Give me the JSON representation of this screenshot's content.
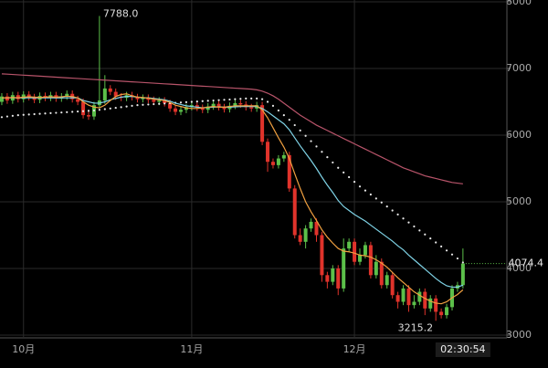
{
  "chart_data": {
    "type": "candlestick",
    "categories": [
      null,
      null,
      null,
      null,
      "10月",
      null,
      null,
      null,
      null,
      null,
      null,
      null,
      null,
      null,
      null,
      null,
      null,
      null,
      null,
      null,
      null,
      null,
      null,
      null,
      null,
      null,
      null,
      null,
      null,
      null,
      null,
      null,
      null,
      null,
      null,
      "11月",
      null,
      null,
      null,
      null,
      null,
      null,
      null,
      null,
      null,
      null,
      null,
      null,
      null,
      null,
      null,
      null,
      null,
      null,
      null,
      null,
      null,
      null,
      null,
      null,
      null,
      null,
      null,
      null,
      null,
      "12月",
      null,
      null,
      null,
      null,
      null,
      null,
      null,
      null,
      null,
      null,
      null,
      null,
      null,
      null,
      null,
      null,
      null,
      null,
      null,
      null
    ],
    "open": [
      6500,
      6580,
      6520,
      6600,
      6540,
      6610,
      6570,
      6530,
      6590,
      6560,
      6600,
      6550,
      6580,
      6620,
      6540,
      6500,
      6300,
      6280,
      6450,
      6520,
      6700,
      6650,
      6580,
      6560,
      6600,
      6570,
      6540,
      6560,
      6530,
      6500,
      6520,
      6480,
      6400,
      6350,
      6380,
      6420,
      6450,
      6410,
      6380,
      6430,
      6470,
      6420,
      6390,
      6440,
      6480,
      6460,
      6420,
      6400,
      6450,
      5900,
      5600,
      5550,
      5650,
      5700,
      5200,
      4500,
      4400,
      4600,
      4700,
      4500,
      3900,
      3800,
      4000,
      3700,
      4300,
      4400,
      4100,
      4200,
      4350,
      3900,
      4100,
      3750,
      3900,
      3600,
      3500,
      3700,
      3450,
      3500,
      3650,
      3400,
      3550,
      3350,
      3300,
      3420,
      3700,
      3750
    ],
    "high": [
      6630,
      6630,
      6650,
      6650,
      6660,
      6660,
      6620,
      6640,
      6640,
      6650,
      6650,
      6630,
      6670,
      6670,
      6590,
      6550,
      6350,
      6500,
      7788.0,
      6900,
      6750,
      6700,
      6630,
      6650,
      6650,
      6620,
      6610,
      6610,
      6580,
      6570,
      6570,
      6530,
      6450,
      6430,
      6470,
      6500,
      6500,
      6460,
      6480,
      6520,
      6520,
      6470,
      6490,
      6530,
      6530,
      6510,
      6470,
      6500,
      6500,
      5950,
      5650,
      5700,
      5750,
      5750,
      5250,
      4600,
      4650,
      4750,
      4750,
      4550,
      3950,
      4050,
      4050,
      4450,
      4450,
      4450,
      4300,
      4400,
      4400,
      4200,
      4150,
      3950,
      3950,
      3650,
      3750,
      3750,
      3600,
      3700,
      3700,
      3600,
      3600,
      3400,
      3470,
      3750,
      3800,
      4300
    ],
    "low": [
      6450,
      6470,
      6470,
      6490,
      6490,
      6520,
      6480,
      6480,
      6510,
      6510,
      6500,
      6500,
      6530,
      6490,
      6450,
      6250,
      6230,
      6230,
      6400,
      6470,
      6600,
      6530,
      6510,
      6510,
      6520,
      6490,
      6490,
      6480,
      6450,
      6450,
      6430,
      6350,
      6300,
      6300,
      6330,
      6370,
      6360,
      6330,
      6330,
      6380,
      6370,
      6340,
      6340,
      6390,
      6410,
      6370,
      6350,
      6350,
      5850,
      5450,
      5500,
      5500,
      5600,
      5150,
      4450,
      4350,
      4300,
      4550,
      4400,
      3800,
      3700,
      3750,
      3600,
      3650,
      4250,
      4050,
      4050,
      4150,
      3850,
      3850,
      3700,
      3700,
      3550,
      3400,
      3450,
      3350,
      3400,
      3450,
      3300,
      3350,
      3215.2,
      3250,
      3250,
      3370,
      3650,
      3700
    ],
    "close": [
      6580,
      6520,
      6600,
      6540,
      6610,
      6570,
      6530,
      6590,
      6560,
      6600,
      6550,
      6580,
      6620,
      6540,
      6500,
      6300,
      6280,
      6450,
      6520,
      6700,
      6650,
      6580,
      6560,
      6600,
      6570,
      6540,
      6560,
      6530,
      6500,
      6520,
      6480,
      6400,
      6350,
      6380,
      6420,
      6450,
      6410,
      6380,
      6430,
      6470,
      6420,
      6390,
      6440,
      6480,
      6460,
      6420,
      6400,
      6450,
      5900,
      5600,
      5550,
      5650,
      5700,
      5200,
      4500,
      4400,
      4600,
      4700,
      4500,
      3900,
      3800,
      4000,
      3700,
      4300,
      4400,
      4100,
      4200,
      4350,
      3900,
      4100,
      3750,
      3900,
      3600,
      3500,
      3700,
      3450,
      3500,
      3650,
      3400,
      3550,
      3350,
      3300,
      3420,
      3700,
      3750,
      4074.4
    ],
    "up_color": "#5cc04a",
    "down_color": "#e0332b",
    "series": [
      {
        "color": "#b8546a",
        "style": "solid",
        "values": [
          6920,
          6915,
          6910,
          6905,
          6900,
          6895,
          6890,
          6885,
          6880,
          6875,
          6870,
          6865,
          6860,
          6855,
          6850,
          6845,
          6840,
          6835,
          6830,
          6825,
          6820,
          6815,
          6810,
          6805,
          6800,
          6795,
          6790,
          6785,
          6780,
          6775,
          6770,
          6765,
          6760,
          6755,
          6750,
          6745,
          6740,
          6735,
          6730,
          6725,
          6720,
          6715,
          6710,
          6705,
          6700,
          6695,
          6690,
          6680,
          6660,
          6630,
          6590,
          6540,
          6480,
          6420,
          6360,
          6300,
          6250,
          6200,
          6150,
          6110,
          6070,
          6030,
          5990,
          5950,
          5910,
          5870,
          5830,
          5790,
          5750,
          5710,
          5670,
          5630,
          5590,
          5550,
          5510,
          5480,
          5450,
          5420,
          5390,
          5370,
          5350,
          5330,
          5310,
          5290,
          5280,
          5270
        ]
      },
      {
        "color": "#e8e8e8",
        "style": "dotted",
        "values": [
          6270,
          6280,
          6290,
          6300,
          6305,
          6310,
          6315,
          6320,
          6325,
          6330,
          6335,
          6340,
          6345,
          6350,
          6355,
          6360,
          6365,
          6370,
          6380,
          6390,
          6400,
          6410,
          6420,
          6430,
          6440,
          6450,
          6455,
          6460,
          6465,
          6470,
          6475,
          6480,
          6485,
          6490,
          6495,
          6500,
          6505,
          6510,
          6515,
          6520,
          6525,
          6530,
          6535,
          6540,
          6545,
          6550,
          6550,
          6550,
          6540,
          6500,
          6440,
          6370,
          6300,
          6230,
          6150,
          6070,
          5990,
          5910,
          5830,
          5750,
          5670,
          5590,
          5510,
          5440,
          5370,
          5300,
          5230,
          5170,
          5110,
          5050,
          4990,
          4930,
          4870,
          4810,
          4750,
          4690,
          4630,
          4570,
          4510,
          4450,
          4390,
          4330,
          4270,
          4210,
          4150,
          4090
        ]
      },
      {
        "color": "#7fd3e6",
        "style": "solid",
        "values": [
          6560,
          6560,
          6560,
          6560,
          6560,
          6560,
          6560,
          6560,
          6560,
          6560,
          6560,
          6560,
          6560,
          6560,
          6560,
          6520,
          6500,
          6480,
          6480,
          6500,
          6530,
          6550,
          6570,
          6580,
          6580,
          6570,
          6560,
          6560,
          6550,
          6540,
          6530,
          6510,
          6480,
          6460,
          6440,
          6430,
          6420,
          6410,
          6415,
          6420,
          6425,
          6420,
          6420,
          6425,
          6430,
          6430,
          6430,
          6430,
          6400,
          6350,
          6290,
          6230,
          6170,
          6080,
          5960,
          5840,
          5730,
          5620,
          5500,
          5370,
          5250,
          5140,
          5020,
          4930,
          4870,
          4810,
          4760,
          4710,
          4650,
          4590,
          4530,
          4470,
          4410,
          4340,
          4280,
          4200,
          4130,
          4060,
          3990,
          3920,
          3850,
          3790,
          3740,
          3720,
          3720,
          3750
        ]
      },
      {
        "color": "#f0a040",
        "style": "solid",
        "values": [
          6560,
          6560,
          6565,
          6560,
          6570,
          6575,
          6570,
          6565,
          6570,
          6575,
          6570,
          6575,
          6585,
          6580,
          6560,
          6500,
          6450,
          6420,
          6410,
          6450,
          6520,
          6580,
          6610,
          6620,
          6590,
          6570,
          6565,
          6555,
          6540,
          6530,
          6520,
          6490,
          6450,
          6430,
          6410,
          6400,
          6400,
          6410,
          6420,
          6430,
          6420,
          6420,
          6430,
          6440,
          6440,
          6440,
          6440,
          6440,
          6380,
          6260,
          6110,
          5960,
          5820,
          5650,
          5420,
          5200,
          5000,
          4850,
          4720,
          4580,
          4470,
          4380,
          4300,
          4260,
          4250,
          4230,
          4200,
          4190,
          4170,
          4130,
          4080,
          4020,
          3940,
          3860,
          3790,
          3720,
          3650,
          3600,
          3550,
          3510,
          3480,
          3470,
          3500,
          3560,
          3610,
          3680
        ]
      }
    ],
    "ylim": [
      3000,
      8000
    ],
    "yticks": [
      3000,
      4000,
      5000,
      6000,
      7000,
      8000
    ],
    "grid": true,
    "max_label": {
      "value": 7788,
      "label": "7788.0"
    },
    "min_label": {
      "value": 3215.2,
      "label": "3215.2"
    },
    "last_label": {
      "value": 4074.4,
      "label": "4074.4"
    },
    "current_time": "02:30:54"
  }
}
